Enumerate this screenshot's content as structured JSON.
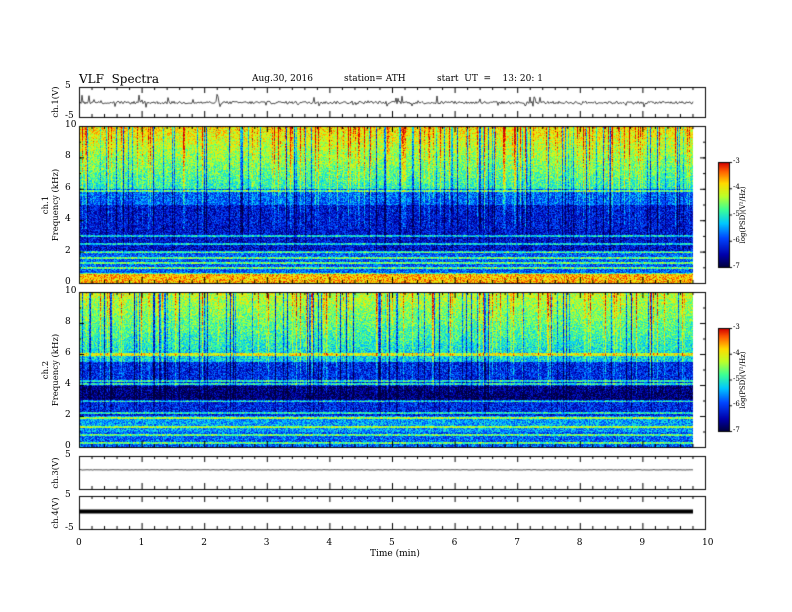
{
  "header": {
    "title": "VLF  Spectra",
    "date": "Aug.30, 2016",
    "station": "station= ATH",
    "start": "start  UT  =    13: 20: 1"
  },
  "chart_data": [
    {
      "type": "line",
      "panel": "ch1-waveform",
      "ylabel": "ch.1(V)",
      "ylim": [
        -5,
        5
      ],
      "yticks": [
        "5",
        "-5"
      ],
      "baseline": -0.2,
      "spikes": "many short upward spikes up to ~ +2.5 V and downward to ~ -2 V",
      "x_range_min": [
        0,
        9.8
      ]
    },
    {
      "type": "heatmap",
      "panel": "ch1-spectrogram",
      "ylabel": "ch.1\nFrequency (kHz)",
      "ylim": [
        0,
        10
      ],
      "yticks": [
        "0",
        "2",
        "4",
        "6",
        "8",
        "10"
      ],
      "colorbar": {
        "label": "log(PSD)(V²/Hz)",
        "range": [
          -7,
          -3
        ],
        "ticks": [
          "-3",
          "-4",
          "-5",
          "-6",
          "-7"
        ]
      },
      "bands_khz": [
        0.1,
        0.25,
        0.4,
        0.55,
        1.0,
        1.3,
        1.6,
        2.0,
        2.5,
        3.0,
        5.9
      ],
      "description_levels": {
        "0-0.7kHz": -4,
        "1-5kHz": -6.3,
        "6-10kHz": -4.5
      }
    },
    {
      "type": "heatmap",
      "panel": "ch2-spectrogram",
      "ylabel": "ch.2\nFrequency (kHz)",
      "ylim": [
        0,
        10
      ],
      "yticks": [
        "0",
        "2",
        "4",
        "6",
        "8",
        "10"
      ],
      "colorbar": {
        "label": "log(PSD)(V²/Hz)",
        "range": [
          -7,
          -3
        ],
        "ticks": [
          "-3",
          "-4",
          "-5",
          "-6",
          "-7"
        ]
      },
      "bands_khz": [
        0.3,
        0.8,
        1.3,
        1.9,
        2.2,
        3.0,
        4.1,
        4.3,
        6.0
      ],
      "description_levels": {
        "0-1kHz": -5.5,
        "3-4kHz": -7,
        "6-10kHz": -4.6
      }
    },
    {
      "type": "line",
      "panel": "ch3-waveform",
      "ylabel": "ch.3(V)",
      "ylim": [
        -5,
        5
      ],
      "yticks": [
        "5"
      ],
      "baseline": 0.8
    },
    {
      "type": "line",
      "panel": "ch4-waveform",
      "ylabel": "ch.4(V)",
      "ylim": [
        -5,
        5
      ],
      "yticks": [
        "5",
        "-5"
      ],
      "baseline": 0.3
    }
  ],
  "x_axis": {
    "label": "Time  (min)",
    "xlim": [
      0,
      10
    ],
    "ticks": [
      "0",
      "1",
      "2",
      "3",
      "4",
      "5",
      "6",
      "7",
      "8",
      "9",
      "10"
    ]
  }
}
